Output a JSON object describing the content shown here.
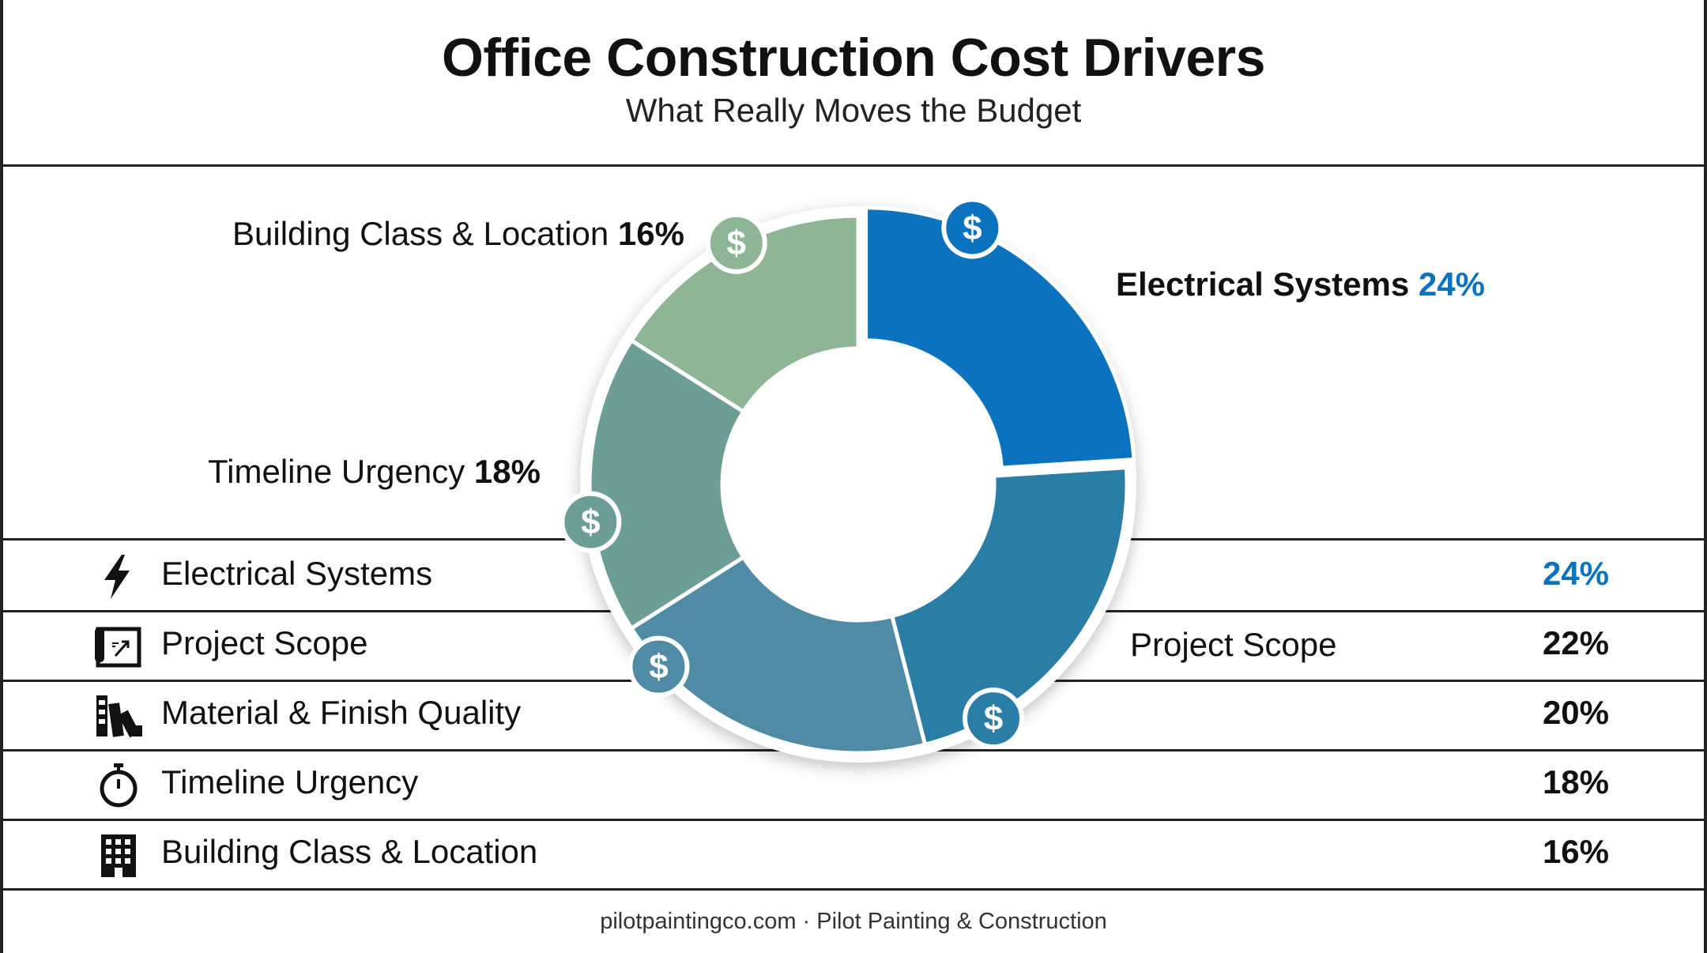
{
  "header": {
    "title": "Office Construction Cost Drivers",
    "subtitle": "What Really Moves the Budget"
  },
  "chart_data": {
    "type": "pie",
    "variant": "donut",
    "categories": [
      "Electrical Systems",
      "Project Scope",
      "Material & Finish Quality",
      "Timeline Urgency",
      "Building Class & Location"
    ],
    "values": [
      24,
      22,
      20,
      18,
      16
    ],
    "unit": "%",
    "colors": [
      "#0a72bf",
      "#2a7ea6",
      "#4f8ba5",
      "#6c9e96",
      "#8db596"
    ],
    "callouts": [
      {
        "category": "Building Class & Location",
        "text": "Building Class & Location",
        "value": "16%"
      },
      {
        "category": "Electrical Systems",
        "text": "Electrical Systems",
        "value": "24%"
      },
      {
        "category": "Timeline Urgency",
        "text": "Timeline Urgency",
        "value": "18%"
      },
      {
        "category": "Project Scope",
        "text": "Project Scope",
        "value": ""
      }
    ],
    "marker_symbol": "$"
  },
  "table": {
    "rows": [
      {
        "icon": "lightning-icon",
        "label": "Electrical Systems",
        "value": "24%",
        "color": "#0a72bf"
      },
      {
        "icon": "blueprint-icon",
        "label": "Project Scope",
        "value": "22%",
        "color": "#111111"
      },
      {
        "icon": "swatches-icon",
        "label": "Material & Finish Quality",
        "value": "20%",
        "color": "#111111"
      },
      {
        "icon": "stopwatch-icon",
        "label": "Timeline Urgency",
        "value": "18%",
        "color": "#111111"
      },
      {
        "icon": "building-icon",
        "label": "Building Class & Location",
        "value": "16%",
        "color": "#111111"
      }
    ]
  },
  "footer": {
    "text": "pilotpaintingco.com · Pilot Painting & Construction"
  }
}
